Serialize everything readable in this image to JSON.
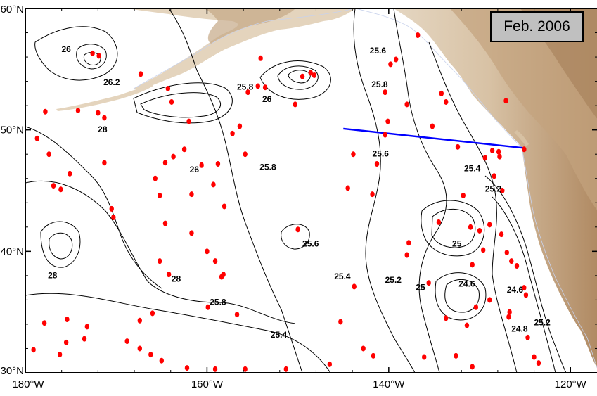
{
  "title_box": "Feb. 2006",
  "axes": {
    "lon_min": -180,
    "lon_max": -117,
    "lat_min": 30,
    "lat_max": 60,
    "lat_ticks": [
      {
        "value": 60,
        "label": "60°N"
      },
      {
        "value": 50,
        "label": "50°N"
      },
      {
        "value": 40,
        "label": "40°N"
      },
      {
        "value": 30,
        "label": "30°N"
      }
    ],
    "lon_ticks": [
      {
        "value": -180,
        "label": "180°W"
      },
      {
        "value": -160,
        "label": "160°W"
      },
      {
        "value": -140,
        "label": "140°W"
      },
      {
        "value": -120,
        "label": "120°W"
      }
    ]
  },
  "colors": {
    "land_low": "#e9dccb",
    "land_mid": "#d6bfa1",
    "land_high": "#b38a62",
    "contour": "#000000",
    "stations": "#ff0000",
    "transect": "#0000ff",
    "coastline": "#c8d2ec"
  },
  "transect_line": {
    "lon": [
      -145,
      -125
    ],
    "lat": [
      50.1,
      48.5
    ]
  },
  "contour_labels": [
    {
      "text": "26",
      "lon": -175.5,
      "lat": 56.4
    },
    {
      "text": "26.2",
      "lon": -170.5,
      "lat": 53.7
    },
    {
      "text": "25.8",
      "lon": -155.8,
      "lat": 53.3
    },
    {
      "text": "26",
      "lon": -153.4,
      "lat": 52.3
    },
    {
      "text": "28",
      "lon": -171.5,
      "lat": 49.8
    },
    {
      "text": "26",
      "lon": -161.4,
      "lat": 46.5
    },
    {
      "text": "25.8",
      "lon": -153.3,
      "lat": 46.7
    },
    {
      "text": "25.6",
      "lon": -141.2,
      "lat": 56.3
    },
    {
      "text": "25.8",
      "lon": -141.0,
      "lat": 53.5
    },
    {
      "text": "25.6",
      "lon": -140.9,
      "lat": 47.8
    },
    {
      "text": "25.4",
      "lon": -130.8,
      "lat": 46.6
    },
    {
      "text": "25.2",
      "lon": -128.5,
      "lat": 44.9
    },
    {
      "text": "25",
      "lon": -132.5,
      "lat": 40.4
    },
    {
      "text": "25.6",
      "lon": -148.6,
      "lat": 40.4
    },
    {
      "text": "25.4",
      "lon": -145.1,
      "lat": 37.7
    },
    {
      "text": "25.2",
      "lon": -139.5,
      "lat": 37.4
    },
    {
      "text": "25",
      "lon": -136.5,
      "lat": 36.8
    },
    {
      "text": "24.6",
      "lon": -131.4,
      "lat": 37.1
    },
    {
      "text": "24.6",
      "lon": -126.1,
      "lat": 36.6
    },
    {
      "text": "24.8",
      "lon": -125.6,
      "lat": 33.4
    },
    {
      "text": "25.2",
      "lon": -123.1,
      "lat": 33.9
    },
    {
      "text": "28",
      "lon": -177.0,
      "lat": 37.8
    },
    {
      "text": "28",
      "lon": -163.4,
      "lat": 37.5
    },
    {
      "text": "25.8",
      "lon": -158.8,
      "lat": 35.6
    },
    {
      "text": "25.4",
      "lon": -152.1,
      "lat": 32.9
    }
  ],
  "stations": [
    [
      -172.6,
      56.3
    ],
    [
      -171.9,
      56.1
    ],
    [
      -167.3,
      54.6
    ],
    [
      -164.3,
      53.4
    ],
    [
      -163.9,
      52.3
    ],
    [
      -177.8,
      51.5
    ],
    [
      -174.2,
      51.6
    ],
    [
      -172.0,
      51.4
    ],
    [
      -171.3,
      51.0
    ],
    [
      -178.7,
      49.3
    ],
    [
      -177.4,
      48.0
    ],
    [
      -162.0,
      50.7
    ],
    [
      -162.5,
      48.4
    ],
    [
      -163.7,
      47.8
    ],
    [
      -164.6,
      47.3
    ],
    [
      -165.7,
      46.0
    ],
    [
      -160.6,
      47.1
    ],
    [
      -159.3,
      45.5
    ],
    [
      -158.1,
      43.7
    ],
    [
      -157.2,
      49.7
    ],
    [
      -156.4,
      50.3
    ],
    [
      -155.8,
      48.0
    ],
    [
      -158.8,
      47.2
    ],
    [
      -161.7,
      44.7
    ],
    [
      -175.1,
      46.4
    ],
    [
      -176.1,
      45.1
    ],
    [
      -176.9,
      45.4
    ],
    [
      -171.3,
      47.3
    ],
    [
      -170.5,
      43.5
    ],
    [
      -170.3,
      42.8
    ],
    [
      -165.2,
      44.6
    ],
    [
      -164.6,
      42.3
    ],
    [
      -161.7,
      41.5
    ],
    [
      -160.0,
      40.0
    ],
    [
      -159.1,
      39.2
    ],
    [
      -158.2,
      38.1
    ],
    [
      -158.4,
      37.9
    ],
    [
      -159.9,
      35.4
    ],
    [
      -156.7,
      34.8
    ],
    [
      -165.2,
      39.2
    ],
    [
      -164.2,
      38.1
    ],
    [
      -166.0,
      34.9
    ],
    [
      -167.4,
      34.3
    ],
    [
      -168.8,
      32.6
    ],
    [
      -173.2,
      33.8
    ],
    [
      -173.5,
      32.8
    ],
    [
      -175.5,
      32.5
    ],
    [
      -179.1,
      31.9
    ],
    [
      -176.2,
      31.5
    ],
    [
      -177.9,
      34.1
    ],
    [
      -175.4,
      34.4
    ],
    [
      -167.4,
      32.0
    ],
    [
      -166.2,
      31.5
    ],
    [
      -165.0,
      31.0
    ],
    [
      -162.2,
      30.4
    ],
    [
      -159.1,
      30.3
    ],
    [
      -155.8,
      30.3
    ],
    [
      -151.3,
      30.3
    ],
    [
      -148.2,
      54.5
    ],
    [
      -148.6,
      54.7
    ],
    [
      -149.5,
      54.4
    ],
    [
      -150.3,
      52.1
    ],
    [
      -153.6,
      53.5
    ],
    [
      -154.4,
      53.6
    ],
    [
      -155.5,
      53.1
    ],
    [
      -154.1,
      55.9
    ],
    [
      -150.0,
      41.8
    ],
    [
      -144.5,
      45.2
    ],
    [
      -143.9,
      48.0
    ],
    [
      -141.8,
      44.7
    ],
    [
      -141.3,
      47.2
    ],
    [
      -140.4,
      49.6
    ],
    [
      -140.1,
      50.7
    ],
    [
      -140.4,
      53.1
    ],
    [
      -139.8,
      55.4
    ],
    [
      -139.2,
      55.8
    ],
    [
      -138.0,
      52.1
    ],
    [
      -136.8,
      57.8
    ],
    [
      -137.8,
      40.7
    ],
    [
      -143.8,
      37.1
    ],
    [
      -145.3,
      34.2
    ],
    [
      -146.5,
      30.7
    ],
    [
      -142.8,
      32.0
    ],
    [
      -141.7,
      31.4
    ],
    [
      -135.2,
      50.3
    ],
    [
      -135.6,
      37.4
    ],
    [
      -134.5,
      42.4
    ],
    [
      -134.2,
      53.0
    ],
    [
      -133.7,
      52.3
    ],
    [
      -132.4,
      48.6
    ],
    [
      -131.8,
      44.6
    ],
    [
      -131.0,
      42.0
    ],
    [
      -130.8,
      38.9
    ],
    [
      -130.0,
      41.7
    ],
    [
      -129.4,
      47.7
    ],
    [
      -128.6,
      48.3
    ],
    [
      -127.9,
      48.2
    ],
    [
      -127.8,
      47.8
    ],
    [
      -128.4,
      46.2
    ],
    [
      -128.9,
      42.2
    ],
    [
      -127.6,
      41.4
    ],
    [
      -127.5,
      45.0
    ],
    [
      -127.0,
      39.9
    ],
    [
      -126.5,
      39.2
    ],
    [
      -125.9,
      38.8
    ],
    [
      -126.7,
      35.0
    ],
    [
      -125.1,
      37.0
    ],
    [
      -124.9,
      36.4
    ],
    [
      -126.8,
      34.6
    ],
    [
      -124.7,
      32.9
    ],
    [
      -124.0,
      31.3
    ],
    [
      -123.5,
      30.8
    ],
    [
      -130.8,
      30.5
    ],
    [
      -132.6,
      31.4
    ],
    [
      -131.4,
      33.9
    ],
    [
      -128.9,
      36.0
    ],
    [
      -130.4,
      35.4
    ],
    [
      -129.6,
      40.1
    ],
    [
      -138.0,
      39.7
    ],
    [
      -136.1,
      31.3
    ],
    [
      -133.7,
      34.5
    ],
    [
      -125.1,
      48.4
    ],
    [
      -127.1,
      52.4
    ]
  ]
}
